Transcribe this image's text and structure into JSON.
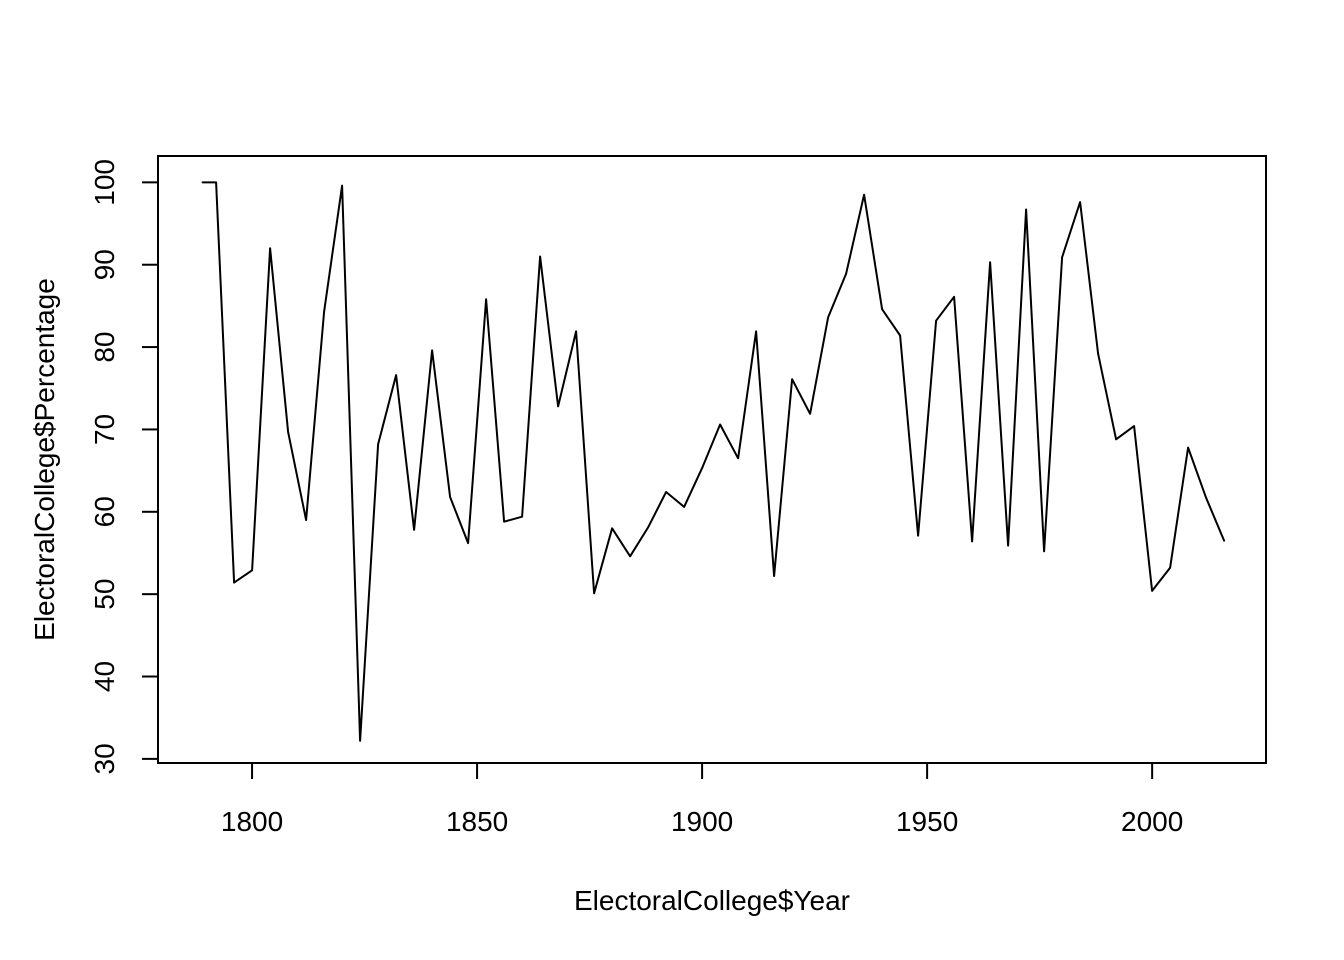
{
  "figure": {
    "background": "#ffffff"
  },
  "chart_data": {
    "type": "line",
    "title": "",
    "xlabel": "ElectoralCollege$Year",
    "ylabel": "ElectoralCollege$Percentage",
    "x": [
      1789,
      1792,
      1796,
      1800,
      1804,
      1808,
      1812,
      1816,
      1820,
      1824,
      1828,
      1832,
      1836,
      1840,
      1844,
      1848,
      1852,
      1856,
      1860,
      1864,
      1868,
      1872,
      1876,
      1880,
      1884,
      1888,
      1892,
      1896,
      1900,
      1904,
      1908,
      1912,
      1916,
      1920,
      1924,
      1928,
      1932,
      1936,
      1940,
      1944,
      1948,
      1952,
      1956,
      1960,
      1964,
      1968,
      1972,
      1976,
      1980,
      1984,
      1988,
      1992,
      1996,
      2000,
      2004,
      2008,
      2012,
      2016
    ],
    "series": [
      {
        "name": "ElectoralCollege$Percentage",
        "values": [
          100,
          100,
          51.4,
          52.9,
          92.0,
          69.7,
          59.0,
          84.3,
          99.6,
          32.2,
          68.2,
          76.6,
          57.8,
          79.6,
          61.8,
          56.2,
          85.8,
          58.8,
          59.4,
          91.0,
          72.8,
          81.9,
          50.1,
          58.0,
          54.6,
          58.1,
          62.4,
          60.6,
          65.3,
          70.6,
          66.5,
          81.9,
          52.2,
          76.1,
          71.9,
          83.6,
          88.9,
          98.5,
          84.6,
          81.4,
          57.1,
          83.2,
          86.1,
          56.4,
          90.3,
          55.9,
          96.7,
          55.2,
          90.9,
          97.6,
          79.2,
          68.8,
          70.4,
          50.4,
          53.2,
          67.8,
          61.7,
          56.5
        ]
      }
    ],
    "x_ticks": [
      1800,
      1850,
      1900,
      1950,
      2000
    ],
    "y_ticks": [
      30,
      40,
      50,
      60,
      70,
      80,
      90,
      100
    ],
    "xlim": [
      1779.1,
      2025.3
    ],
    "ylim": [
      29.5,
      103.2
    ],
    "grid": false,
    "legend": "none",
    "line_color": "#000000",
    "axis_color": "#000000",
    "text_color": "#000000"
  }
}
